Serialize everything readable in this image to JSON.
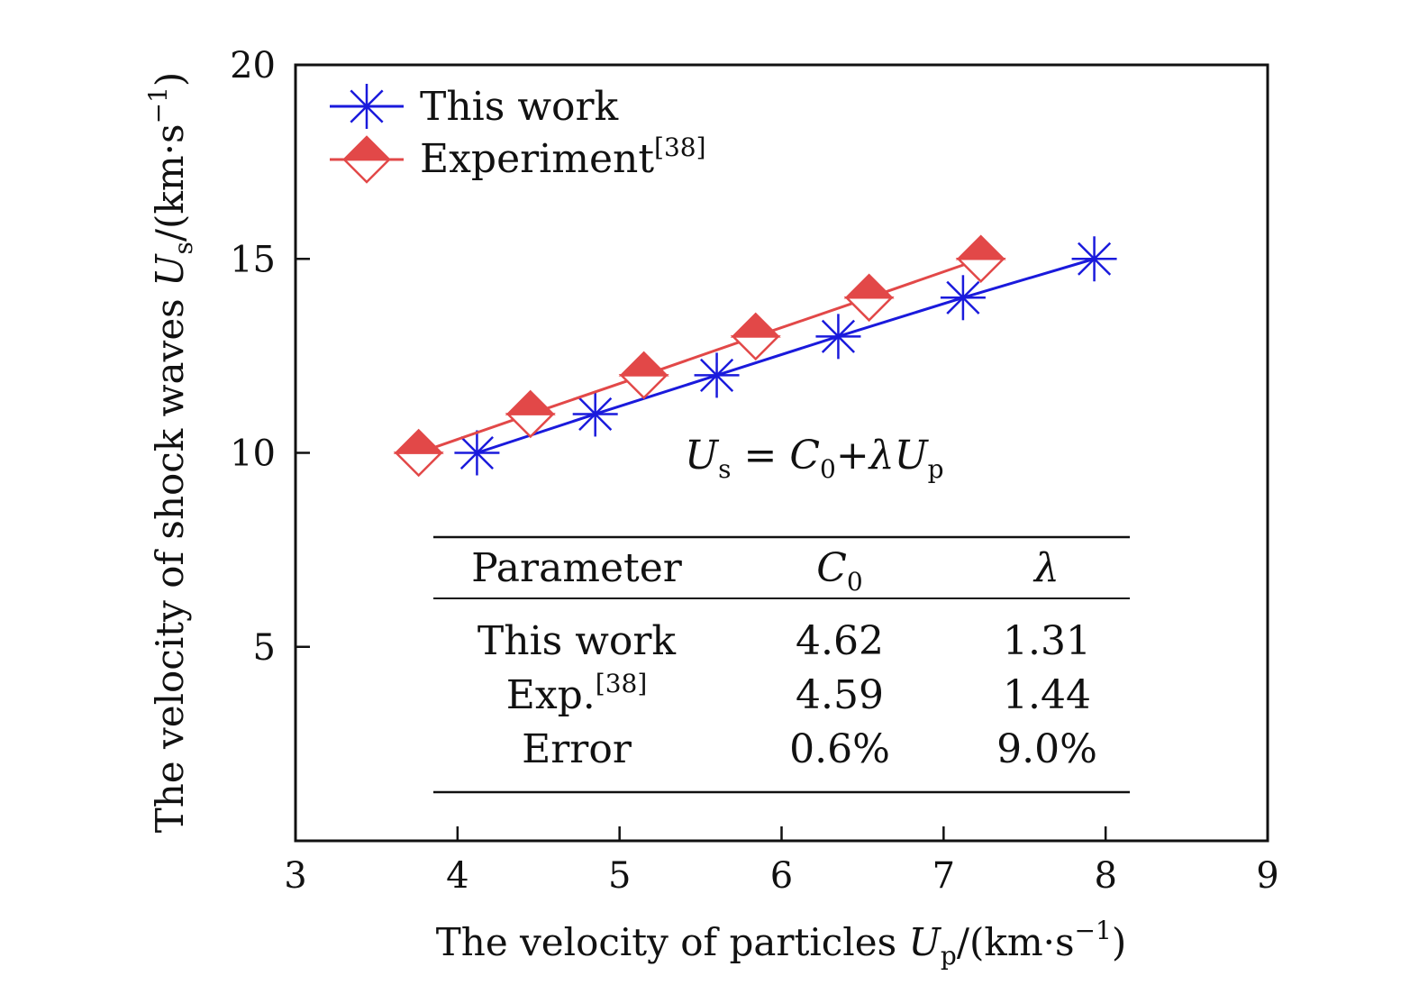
{
  "chart_data": {
    "type": "line",
    "xlabel": {
      "main": "The velocity of particles ",
      "var": "U",
      "sub": "p",
      "units_pre": "/(km·s",
      "sup": "−1",
      "units_post": ")"
    },
    "ylabel": {
      "main": "The velocity of shock waves ",
      "var": "U",
      "sub": "s",
      "units_pre": "/(km·s",
      "sup": "−1",
      "units_post": ")"
    },
    "xlim": [
      3,
      9
    ],
    "ylim": [
      0,
      20
    ],
    "xticks": [
      3,
      4,
      5,
      6,
      7,
      8,
      9
    ],
    "yticks": [
      5,
      10,
      15,
      20
    ],
    "series": [
      {
        "name": "This work",
        "marker": "asterisk",
        "color": "#1a1adc",
        "x": [
          4.12,
          4.85,
          5.6,
          6.35,
          7.12,
          7.93
        ],
        "y": [
          10,
          11,
          12,
          13,
          14,
          15
        ]
      },
      {
        "name": "Experiment",
        "name_sup": "[38]",
        "marker": "diamond-half",
        "color": "#e24848",
        "x": [
          3.76,
          4.45,
          5.15,
          5.84,
          6.54,
          7.23
        ],
        "y": [
          10,
          11,
          12,
          13,
          14,
          15
        ]
      }
    ],
    "equation": {
      "lhs_var": "U",
      "lhs_sub": "s",
      "eq": " = ",
      "c_var": "C",
      "c_sub": "0",
      "plus": "+",
      "lambda": "λ",
      "rhs_var": "U",
      "rhs_sub": "p"
    },
    "table": {
      "headers": {
        "param": "Parameter",
        "c0_var": "C",
        "c0_sub": "0",
        "lambda": "λ"
      },
      "rows": [
        {
          "label": "This work",
          "label_sup": "",
          "c0": "4.62",
          "lambda": "1.31"
        },
        {
          "label": "Exp.",
          "label_sup": "[38]",
          "c0": "4.59",
          "lambda": "1.44"
        },
        {
          "label": "Error",
          "label_sup": "",
          "c0": "0.6%",
          "lambda": "9.0%"
        }
      ]
    }
  }
}
